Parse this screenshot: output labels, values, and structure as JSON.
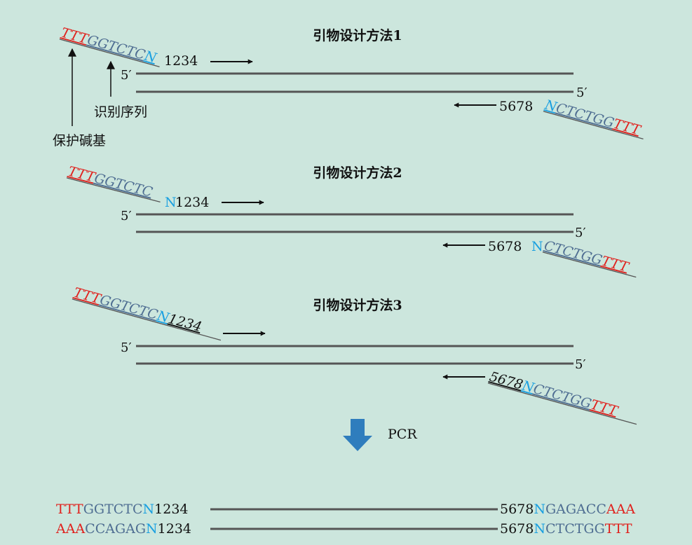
{
  "colors": {
    "background": "#cce6dd",
    "protect": "#e0221e",
    "recognition": "#4f6e92",
    "n_base": "#1aa0e0",
    "template": "#555555",
    "arrow_fill": "#2f7dbd"
  },
  "sections": [
    {
      "title": "引物设计方法1",
      "forward": {
        "protect": "TTT",
        "recog": "GGTCTC",
        "n": "N",
        "gene": "1234"
      },
      "reverse": {
        "gene": "5678",
        "n": "N",
        "recog": "CTCTGG",
        "protect": "TTT"
      },
      "prime_top": "5′",
      "prime_bottom": "5′"
    },
    {
      "title": "引物设计方法2",
      "forward": {
        "protect": "TTT",
        "recog": "GGTCTC",
        "n": "N",
        "gene": "1234"
      },
      "reverse": {
        "gene": "5678",
        "n": "N",
        "recog": "CTCTGG",
        "protect": "TTT"
      },
      "prime_top": "5′",
      "prime_bottom": "5′"
    },
    {
      "title": "引物设计方法3",
      "forward": {
        "protect": "TTT",
        "recog": "GGTCTC",
        "n": "N",
        "gene": "1234"
      },
      "reverse": {
        "gene": "5678",
        "n": "N",
        "recog": "CTCTGG",
        "protect": "TTT"
      },
      "prime_top": "5′",
      "prime_bottom": "5′"
    }
  ],
  "annotations": {
    "recognition_site": "识别序列",
    "protective_bases": "保护碱基"
  },
  "pcr_label": "PCR",
  "product": {
    "top": {
      "left": {
        "protect": "TTT",
        "recog": "GGTCTC",
        "n": "N",
        "gene": "1234"
      },
      "right": {
        "gene": "5678",
        "n": "N",
        "recog": "GAGACC",
        "protect": "AAA"
      }
    },
    "bottom": {
      "left": {
        "protect": "AAA",
        "recog": "CCAGAG",
        "n": "N",
        "gene": "1234"
      },
      "right": {
        "gene": "5678",
        "n": "N",
        "recog": "CTCTGG",
        "protect": "TTT"
      }
    }
  }
}
